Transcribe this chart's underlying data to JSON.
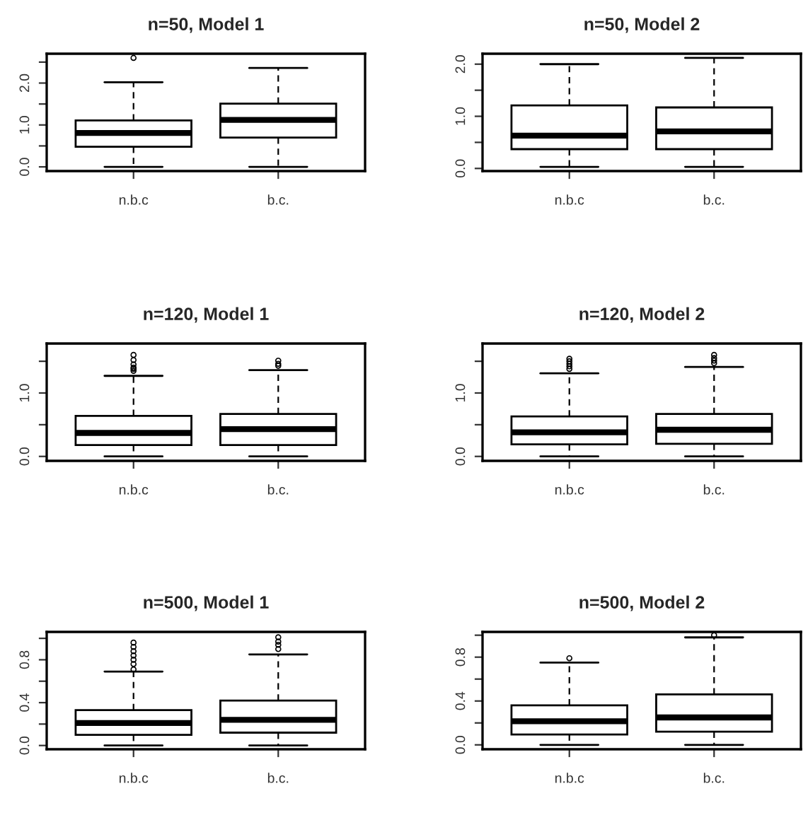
{
  "chart_data": [
    {
      "type": "box",
      "title": "n=50, Model 1",
      "categories": [
        "n.b.c",
        "b.c."
      ],
      "ylim": [
        -0.1,
        2.7
      ],
      "yticks": [
        {
          "value": 0.0,
          "label": "0.0"
        },
        {
          "value": 0.5,
          "label": null
        },
        {
          "value": 1.0,
          "label": "1.0"
        },
        {
          "value": 1.5,
          "label": null
        },
        {
          "value": 2.0,
          "label": "2.0"
        },
        {
          "value": 2.5,
          "label": null
        }
      ],
      "boxes": [
        {
          "low": 0.0,
          "q1": 0.48,
          "median": 0.81,
          "q3": 1.11,
          "high": 2.02,
          "outliers": [
            2.6
          ]
        },
        {
          "low": 0.0,
          "q1": 0.7,
          "median": 1.12,
          "q3": 1.51,
          "high": 2.36
        }
      ]
    },
    {
      "type": "box",
      "title": "n=50, Model 2",
      "categories": [
        "n.b.c",
        "b.c."
      ],
      "ylim": [
        -0.05,
        2.2
      ],
      "yticks": [
        {
          "value": 0.0,
          "label": "0.0"
        },
        {
          "value": 0.5,
          "label": null
        },
        {
          "value": 1.0,
          "label": "1.0"
        },
        {
          "value": 1.5,
          "label": null
        },
        {
          "value": 2.0,
          "label": "2.0"
        }
      ],
      "boxes": [
        {
          "low": 0.03,
          "q1": 0.37,
          "median": 0.63,
          "q3": 1.21,
          "high": 2.0
        },
        {
          "low": 0.03,
          "q1": 0.37,
          "median": 0.71,
          "q3": 1.17,
          "high": 2.12
        }
      ]
    },
    {
      "type": "box",
      "title": "n=120, Model 1",
      "categories": [
        "n.b.c",
        "b.c."
      ],
      "ylim": [
        -0.07,
        1.78
      ],
      "yticks": [
        {
          "value": 0.0,
          "label": "0.0"
        },
        {
          "value": 0.5,
          "label": null
        },
        {
          "value": 1.0,
          "label": "1.0"
        },
        {
          "value": 1.5,
          "label": null
        }
      ],
      "boxes": [
        {
          "low": 0.0,
          "q1": 0.18,
          "median": 0.37,
          "q3": 0.64,
          "high": 1.27,
          "outliers": [
            1.35,
            1.38,
            1.4,
            1.45,
            1.52,
            1.6
          ]
        },
        {
          "low": 0.0,
          "q1": 0.18,
          "median": 0.43,
          "q3": 0.67,
          "high": 1.36,
          "outliers": [
            1.43,
            1.46,
            1.51
          ]
        }
      ]
    },
    {
      "type": "box",
      "title": "n=120, Model 2",
      "categories": [
        "n.b.c",
        "b.c."
      ],
      "ylim": [
        -0.07,
        1.78
      ],
      "yticks": [
        {
          "value": 0.0,
          "label": "0.0"
        },
        {
          "value": 0.5,
          "label": null
        },
        {
          "value": 1.0,
          "label": "1.0"
        },
        {
          "value": 1.5,
          "label": null
        }
      ],
      "boxes": [
        {
          "low": 0.0,
          "q1": 0.19,
          "median": 0.38,
          "q3": 0.63,
          "high": 1.31,
          "outliers": [
            1.38,
            1.42,
            1.46,
            1.5,
            1.54
          ]
        },
        {
          "low": 0.0,
          "q1": 0.2,
          "median": 0.42,
          "q3": 0.67,
          "high": 1.41,
          "outliers": [
            1.47,
            1.51,
            1.55,
            1.6
          ]
        }
      ]
    },
    {
      "type": "box",
      "title": "n=500, Model 1",
      "categories": [
        "n.b.c",
        "b.c."
      ],
      "ylim": [
        -0.035,
        1.06
      ],
      "yticks": [
        {
          "value": 0.0,
          "label": "0.0"
        },
        {
          "value": 0.2,
          "label": null
        },
        {
          "value": 0.4,
          "label": "0.4"
        },
        {
          "value": 0.6,
          "label": null
        },
        {
          "value": 0.8,
          "label": "0.8"
        },
        {
          "value": 1.0,
          "label": null
        }
      ],
      "boxes": [
        {
          "low": 0.0,
          "q1": 0.1,
          "median": 0.21,
          "q3": 0.33,
          "high": 0.69,
          "outliers": [
            0.71,
            0.76,
            0.8,
            0.84,
            0.88,
            0.92,
            0.96
          ]
        },
        {
          "low": 0.0,
          "q1": 0.12,
          "median": 0.24,
          "q3": 0.42,
          "high": 0.85,
          "outliers": [
            0.9,
            0.94,
            0.97,
            1.01
          ]
        }
      ]
    },
    {
      "type": "box",
      "title": "n=500, Model 2",
      "categories": [
        "n.b.c",
        "b.c."
      ],
      "ylim": [
        -0.04,
        1.03
      ],
      "yticks": [
        {
          "value": 0.0,
          "label": "0.0"
        },
        {
          "value": 0.2,
          "label": null
        },
        {
          "value": 0.4,
          "label": "0.4"
        },
        {
          "value": 0.6,
          "label": null
        },
        {
          "value": 0.8,
          "label": "0.8"
        },
        {
          "value": 1.0,
          "label": null
        }
      ],
      "boxes": [
        {
          "low": 0.0,
          "q1": 0.095,
          "median": 0.215,
          "q3": 0.36,
          "high": 0.75,
          "outliers": [
            0.79
          ]
        },
        {
          "low": 0.0,
          "q1": 0.12,
          "median": 0.25,
          "q3": 0.46,
          "high": 0.98,
          "outliers": [
            1.0
          ]
        }
      ]
    }
  ]
}
